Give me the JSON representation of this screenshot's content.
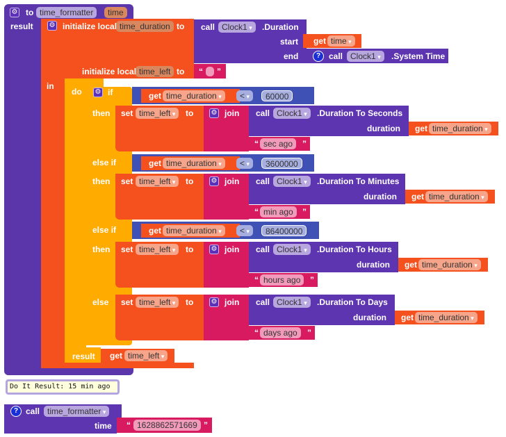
{
  "procedure": {
    "keyword": "to",
    "name": "time_formatter",
    "param": "time",
    "result_label": "result"
  },
  "init_duration": {
    "label": "initialize local",
    "var": "time_duration",
    "to": "to"
  },
  "duration_call": {
    "call": "call",
    "component": "Clock1",
    "method": ".Duration",
    "start_label": "start",
    "start_get": "get",
    "start_var": "time",
    "end_label": "end",
    "end_call": "call",
    "end_component": "Clock1",
    "end_method": ".System Time"
  },
  "init_left": {
    "label": "initialize local",
    "var": "time_left",
    "to": "to",
    "value": ""
  },
  "in_label": "in",
  "do_label": "do",
  "do_result_label": "result",
  "result_get": "get",
  "result_var": "time_left",
  "common": {
    "if": "if",
    "else_if": "else if",
    "else": "else",
    "then": "then",
    "set": "set",
    "set_var": "time_left",
    "to": "to",
    "join": "join",
    "call": "call",
    "component": "Clock1",
    "duration": "duration",
    "get": "get",
    "get_var": "time_duration",
    "op": "<",
    "quote_open": "“",
    "quote_close": "”"
  },
  "branches": [
    {
      "threshold": "60000",
      "method": ".Duration To Seconds",
      "suffix": "sec ago"
    },
    {
      "threshold": "3600000",
      "method": ".Duration To Minutes",
      "suffix": "min ago"
    },
    {
      "threshold": "86400000",
      "method": ".Duration To Hours",
      "suffix": "hours ago"
    },
    {
      "method": ".Duration To Days",
      "suffix": "days ago"
    }
  ],
  "tooltip": "Do It Result: 15 min ago",
  "call_block": {
    "call": "call",
    "name": "time_formatter",
    "param_label": "time",
    "value": "1628862571669"
  },
  "colors": {
    "procedure": "#5b36ab",
    "local": "#f4511e",
    "control": "#ffab00",
    "math": "#3f51b5",
    "text": "#d81b60",
    "component": "#5e35b1"
  }
}
